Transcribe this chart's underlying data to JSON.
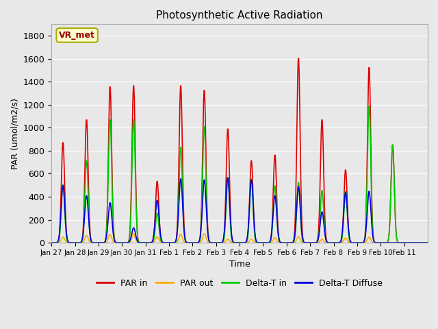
{
  "title": "Photosynthetic Active Radiation",
  "ylabel": "PAR (umol/m2/s)",
  "xlabel": "Time",
  "ylim": [
    0,
    1900
  ],
  "bg_color": "#e8e8e8",
  "plot_bg_color": "#e8e8e8",
  "label_box_text": "VR_met",
  "label_box_facecolor": "#ffffcc",
  "label_box_edgecolor": "#aaaa00",
  "series": {
    "PAR in": {
      "color": "#dd0000",
      "lw": 1.2
    },
    "PAR out": {
      "color": "#ffaa00",
      "lw": 1.2
    },
    "Delta-T in": {
      "color": "#00cc00",
      "lw": 1.2
    },
    "Delta-T Diffuse": {
      "color": "#0000dd",
      "lw": 1.2
    }
  },
  "xtick_labels": [
    "Jan 27",
    "Jan 28",
    "Jan 29",
    "Jan 30",
    "Jan 31",
    "Feb 1",
    "Feb 2",
    "Feb 3",
    "Feb 4",
    "Feb 5",
    "Feb 6",
    "Feb 7",
    "Feb 8",
    "Feb 9",
    "Feb 10",
    "Feb 11"
  ],
  "ytick_values": [
    0,
    200,
    400,
    600,
    800,
    1000,
    1200,
    1400,
    1600,
    1800
  ],
  "n_days": 16,
  "par_in_peaks": [
    880,
    1080,
    1370,
    1380,
    540,
    1380,
    1340,
    1000,
    720,
    770,
    1620,
    1080,
    640,
    1540,
    860,
    0
  ],
  "par_out_peaks": [
    50,
    65,
    70,
    80,
    50,
    75,
    80,
    30,
    30,
    45,
    55,
    30,
    40,
    50,
    0,
    0
  ],
  "delta_t_peaks": [
    510,
    720,
    1080,
    1080,
    260,
    840,
    1020,
    570,
    560,
    500,
    530,
    460,
    450,
    1200,
    860,
    0
  ],
  "delta_d_peaks": [
    500,
    410,
    350,
    130,
    370,
    560,
    550,
    570,
    550,
    410,
    490,
    270,
    440,
    450,
    0,
    0
  ],
  "pts_per_day": 48
}
